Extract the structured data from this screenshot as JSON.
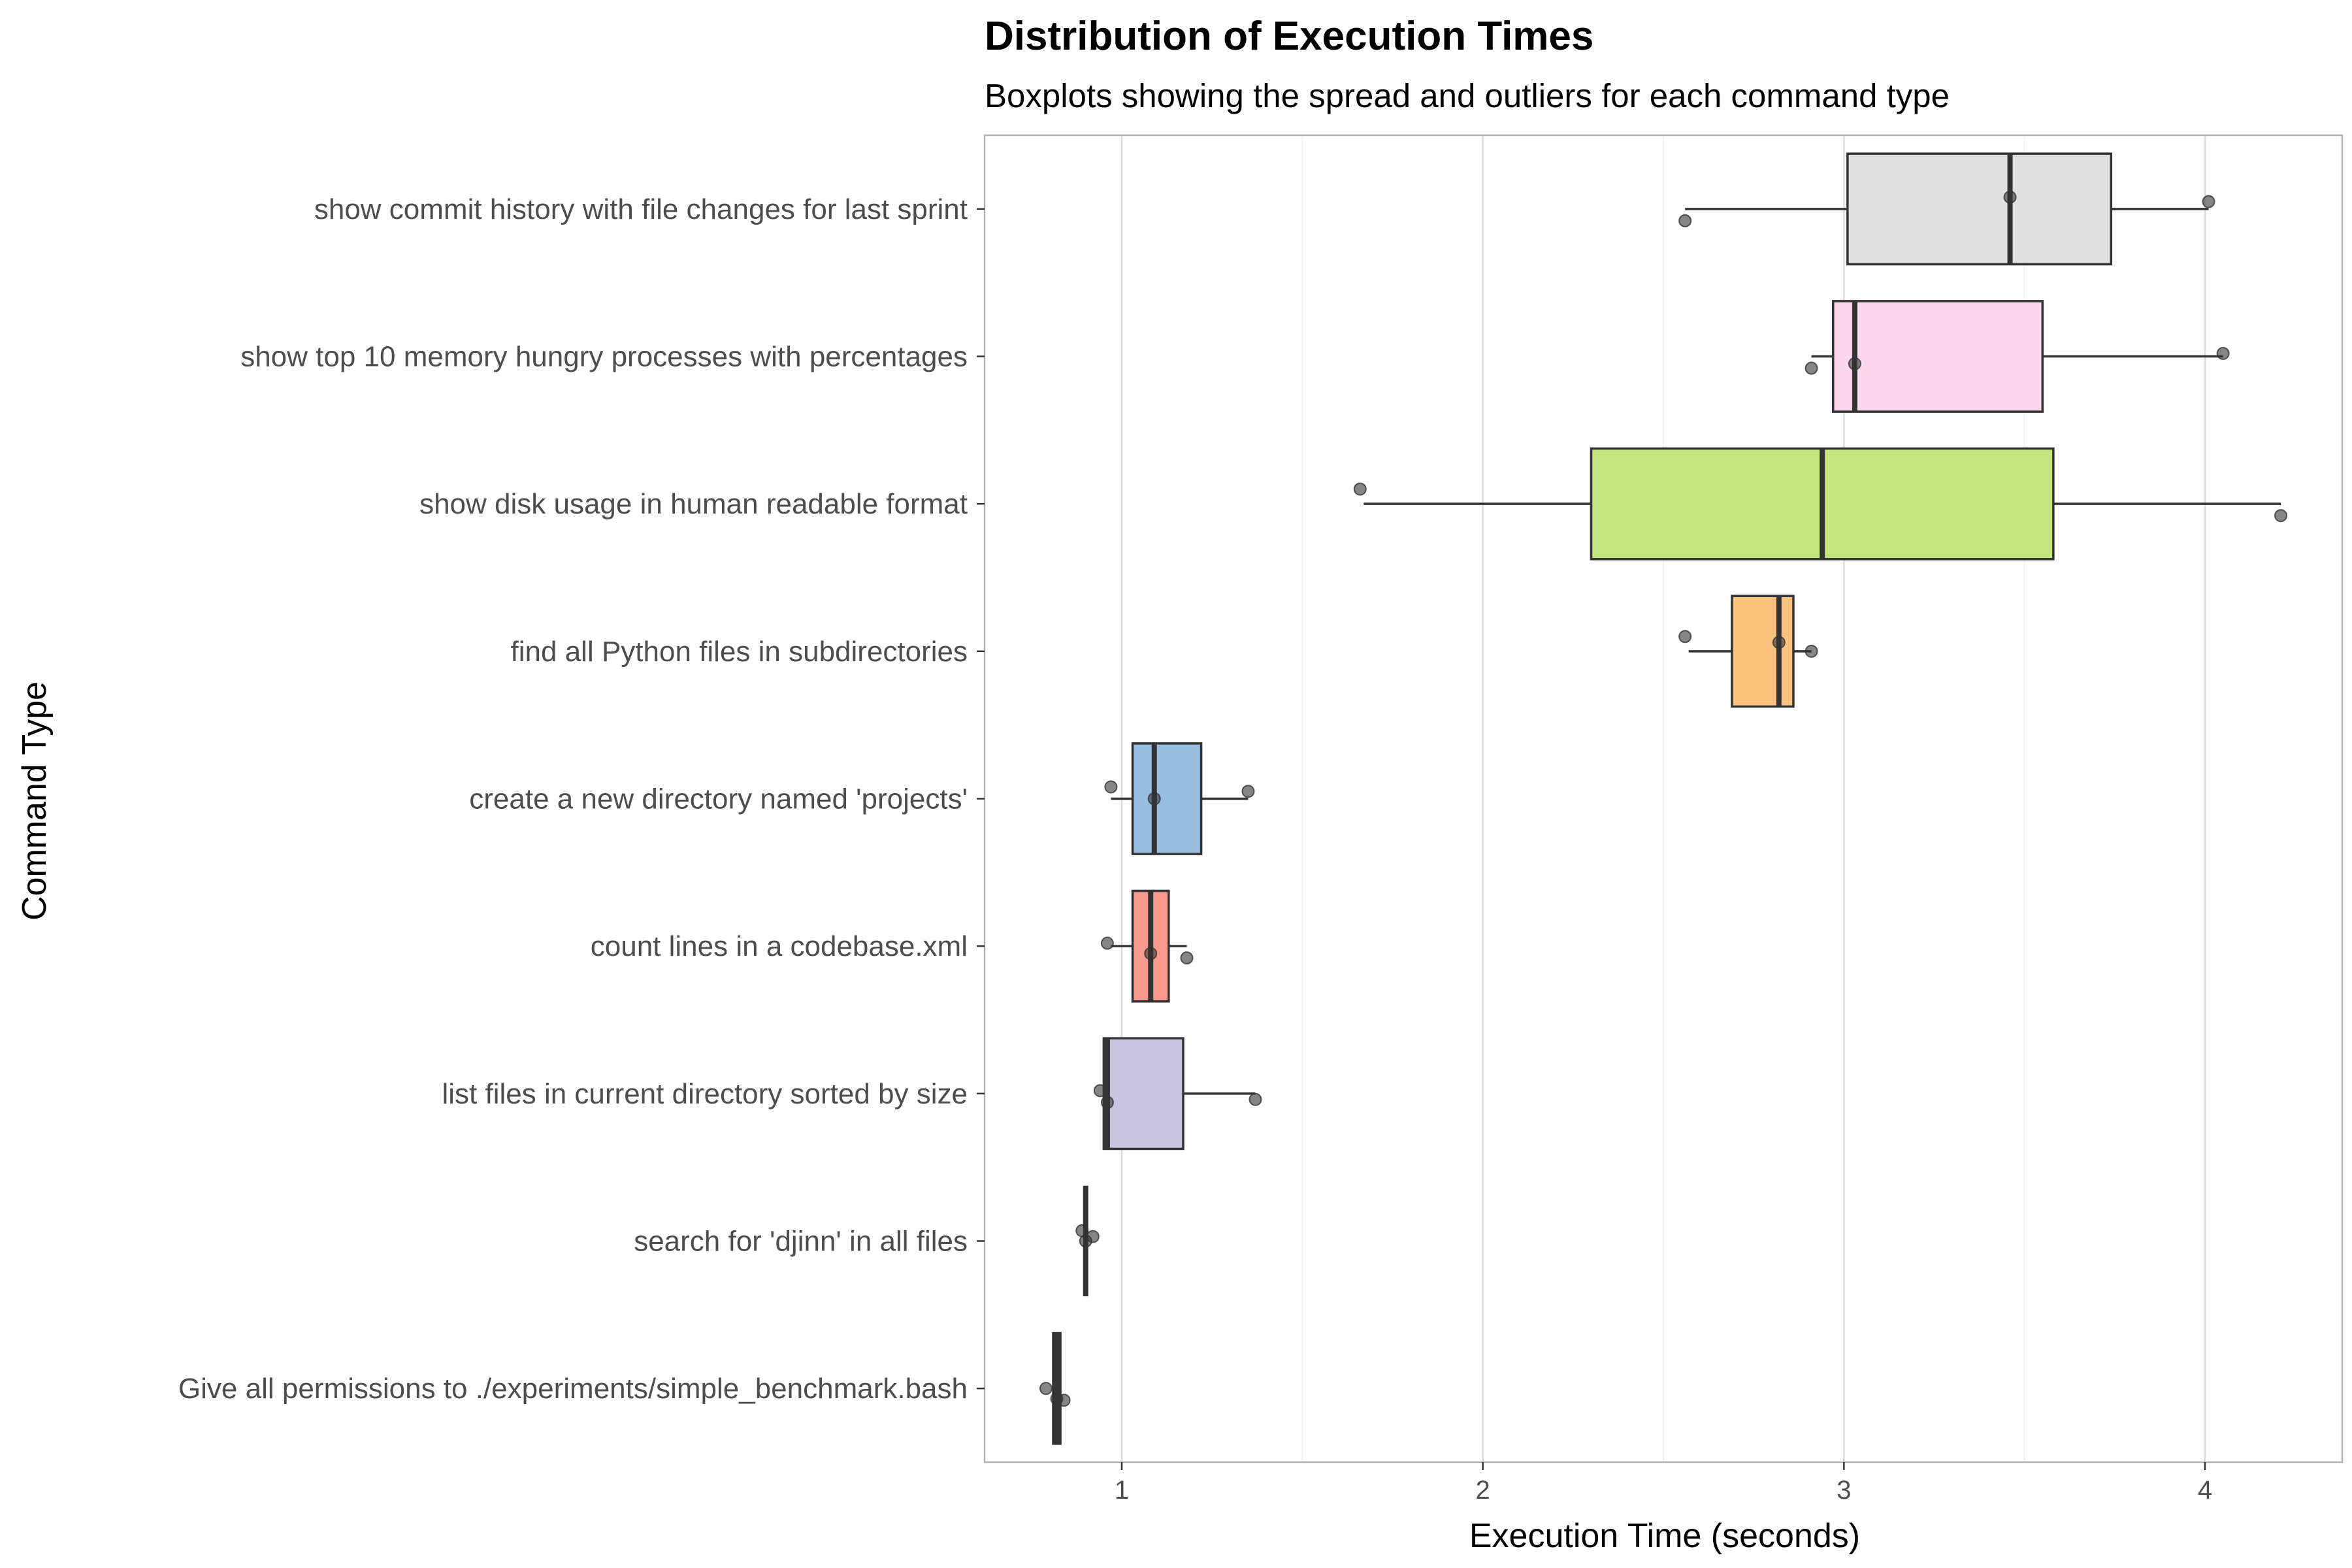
{
  "chart_data": {
    "type": "boxplot",
    "title": "Distribution of Execution Times",
    "subtitle": "Boxplots showing the spread and outliers for each command type",
    "xlabel": "Execution Time (seconds)",
    "ylabel": "Command Type",
    "xlim": [
      0.62,
      4.38
    ],
    "x_ticks": [
      1,
      2,
      3,
      4
    ],
    "grid": true,
    "legend": "none",
    "categories": [
      "show commit history with file changes for last sprint",
      "show top 10 memory hungry processes with percentages",
      "show disk usage in human readable format",
      "find all Python files in subdirectories",
      "create a new directory named 'projects'",
      "count lines in a codebase.xml",
      "list files in current directory sorted by size",
      "search for 'djinn' in all files",
      "Give all permissions to ./experiments/simple_benchmark.bash"
    ],
    "boxes": [
      {
        "min": 2.56,
        "q1": 3.01,
        "median": 3.46,
        "q3": 3.74,
        "max": 4.01,
        "fill": "#e0e0e0",
        "points": [
          [
            2.56,
            0.08
          ],
          [
            3.46,
            -0.08
          ],
          [
            4.01,
            -0.05
          ]
        ]
      },
      {
        "min": 2.91,
        "q1": 2.97,
        "median": 3.03,
        "q3": 3.55,
        "max": 4.05,
        "fill": "#fcd8ea",
        "points": [
          [
            2.91,
            0.08
          ],
          [
            3.03,
            0.05
          ],
          [
            4.05,
            -0.02
          ]
        ]
      },
      {
        "min": 1.67,
        "q1": 2.3,
        "median": 2.94,
        "q3": 3.58,
        "max": 4.21,
        "fill": "#c2e580",
        "points": [
          [
            1.66,
            -0.1
          ],
          [
            4.21,
            0.08
          ]
        ]
      },
      {
        "min": 2.57,
        "q1": 2.69,
        "median": 2.82,
        "q3": 2.86,
        "max": 2.91,
        "fill": "#fdc27f",
        "points": [
          [
            2.56,
            -0.1
          ],
          [
            2.82,
            -0.06
          ],
          [
            2.91,
            0.0
          ]
        ]
      },
      {
        "min": 0.97,
        "q1": 1.03,
        "median": 1.09,
        "q3": 1.22,
        "max": 1.35,
        "fill": "#99bedf",
        "points": [
          [
            0.97,
            -0.08
          ],
          [
            1.09,
            0.0
          ],
          [
            1.35,
            -0.05
          ]
        ]
      },
      {
        "min": 0.97,
        "q1": 1.03,
        "median": 1.08,
        "q3": 1.13,
        "max": 1.18,
        "fill": "#fc998e",
        "points": [
          [
            0.96,
            -0.02
          ],
          [
            1.08,
            0.05
          ],
          [
            1.18,
            0.08
          ]
        ]
      },
      {
        "min": 0.95,
        "q1": 0.95,
        "median": 0.96,
        "q3": 1.17,
        "max": 1.37,
        "fill": "#c9c5e0",
        "points": [
          [
            0.94,
            -0.02
          ],
          [
            0.96,
            0.06
          ],
          [
            1.37,
            0.04
          ]
        ]
      },
      {
        "min": 0.9,
        "q1": 0.9,
        "median": 0.9,
        "q3": 0.9,
        "max": 0.9,
        "fill": "#cccccc",
        "points": [
          [
            0.89,
            -0.07
          ],
          [
            0.9,
            0.0
          ],
          [
            0.92,
            -0.03
          ]
        ]
      },
      {
        "min": 0.81,
        "q1": 0.81,
        "median": 0.82,
        "q3": 0.83,
        "max": 0.83,
        "fill": "#8dd3c7",
        "points": [
          [
            0.79,
            0.0
          ],
          [
            0.82,
            0.07
          ],
          [
            0.84,
            0.08
          ]
        ]
      }
    ]
  }
}
